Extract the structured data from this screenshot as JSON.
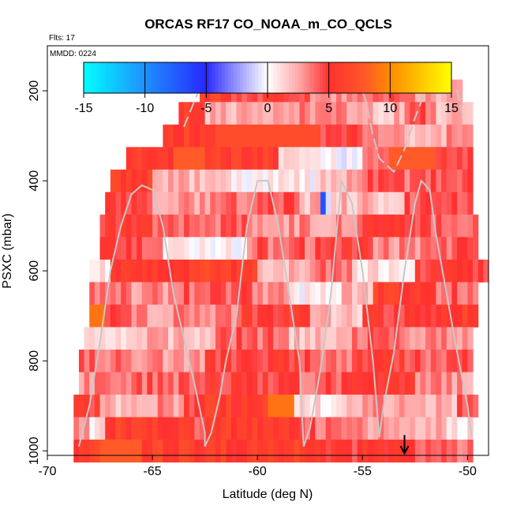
{
  "chart_data": {
    "type": "heatmap",
    "title": "ORCAS RF17 CO_NOAA_m_CO_QCLS",
    "flights_note": "Flts: 17",
    "date_note": "MMDD: 0224",
    "xlabel": "Latitude (deg N)",
    "ylabel": "PSXC (mbar)",
    "xlim": [
      -70,
      -49
    ],
    "ylim": [
      1010,
      100
    ],
    "y_reversed": true,
    "x_ticks": [
      "-70",
      "-65",
      "-60",
      "-55",
      "-50"
    ],
    "x_tick_values": [
      -70,
      -65,
      -60,
      -55,
      -50
    ],
    "y_ticks": [
      "200",
      "400",
      "600",
      "800",
      "1000"
    ],
    "y_tick_values": [
      200,
      400,
      600,
      800,
      1000
    ],
    "colorbar": {
      "range": [
        -15,
        15
      ],
      "ticks": [
        "-15",
        "-10",
        "-5",
        "0",
        "5",
        "10",
        "15"
      ],
      "tick_values": [
        -15,
        -10,
        -5,
        0,
        5,
        10,
        15
      ]
    },
    "cell_height_mbar": 50,
    "cell_width_deg": 0.25,
    "rows": [
      {
        "p": 200,
        "x0": -62.75,
        "x1": -50.25,
        "segs": [
          [
            -62.75,
            -61.5,
            6
          ],
          [
            -61.5,
            -57.5,
            5
          ],
          [
            -57.5,
            -55,
            3
          ],
          [
            -55,
            -53,
            4
          ],
          [
            -53,
            -51.5,
            3
          ],
          [
            -51.5,
            -50.25,
            2
          ]
        ]
      },
      {
        "p": 250,
        "x0": -63.75,
        "x1": -49.75,
        "segs": [
          [
            -63.75,
            -62.5,
            6
          ],
          [
            -62.5,
            -58,
            2
          ],
          [
            -58,
            -55.5,
            3
          ],
          [
            -55.5,
            -53,
            2
          ],
          [
            -53,
            -51.5,
            4
          ],
          [
            -51.5,
            -49.75,
            2
          ]
        ]
      },
      {
        "p": 300,
        "x0": -64.5,
        "x1": -49.75,
        "segs": [
          [
            -64.5,
            -62,
            6
          ],
          [
            -62,
            -57,
            7
          ],
          [
            -57,
            -55,
            5
          ],
          [
            -55,
            -53,
            3
          ],
          [
            -53,
            -51,
            2
          ],
          [
            -51,
            -49.75,
            3
          ]
        ]
      },
      {
        "p": 350,
        "x0": -66.25,
        "x1": -49.75,
        "segs": [
          [
            -66.25,
            -64,
            6
          ],
          [
            -64,
            -62.5,
            8
          ],
          [
            -62.5,
            -59,
            6
          ],
          [
            -59,
            -57,
            2
          ],
          [
            -57,
            -55,
            0
          ],
          [
            -55,
            -53.75,
            3
          ],
          [
            -53.75,
            -51.5,
            8
          ],
          [
            -51.5,
            -49.75,
            5
          ]
        ]
      },
      {
        "p": 400,
        "x0": -67,
        "x1": -49.75,
        "segs": [
          [
            -67,
            -65,
            6
          ],
          [
            -65,
            -61.5,
            2
          ],
          [
            -61.5,
            -57,
            0.5
          ],
          [
            -57,
            -55,
            2
          ],
          [
            -55,
            -53,
            4
          ],
          [
            -53,
            -49.75,
            4
          ]
        ]
      },
      {
        "p": 450,
        "x0": -67.25,
        "x1": -49.75,
        "segs": [
          [
            -67.25,
            -65,
            5
          ],
          [
            -65,
            -62,
            3
          ],
          [
            -62,
            -58,
            4
          ],
          [
            -58,
            -57,
            2
          ],
          [
            -57,
            -56.75,
            -7
          ],
          [
            -56.75,
            -56.5,
            0
          ],
          [
            -56.5,
            -53,
            2
          ],
          [
            -53,
            -49.75,
            4
          ]
        ]
      },
      {
        "p": 500,
        "x0": -67.5,
        "x1": -49.5,
        "segs": [
          [
            -67.5,
            -65,
            5
          ],
          [
            -65,
            -60.5,
            4
          ],
          [
            -60.5,
            -57,
            3
          ],
          [
            -57,
            -55,
            3
          ],
          [
            -55,
            -52,
            5
          ],
          [
            -52,
            -49.5,
            4
          ]
        ]
      },
      {
        "p": 550,
        "x0": -67.5,
        "x1": -49.5,
        "segs": [
          [
            -67.5,
            -65.5,
            5
          ],
          [
            -65.5,
            -64.5,
            4
          ],
          [
            -64.5,
            -60.5,
            0.5
          ],
          [
            -60.5,
            -56.5,
            4
          ],
          [
            -56.5,
            -54.5,
            5
          ],
          [
            -54.5,
            -51.5,
            3
          ],
          [
            -51.5,
            -49.5,
            4
          ]
        ]
      },
      {
        "p": 600,
        "x0": -68,
        "x1": -49,
        "segs": [
          [
            -68,
            -67,
            0.5
          ],
          [
            -67,
            -60,
            6
          ],
          [
            -60,
            -57.5,
            2
          ],
          [
            -57.5,
            -55.5,
            4
          ],
          [
            -55.5,
            -52.5,
            1
          ],
          [
            -52.5,
            -49,
            5
          ]
        ]
      },
      {
        "p": 650,
        "x0": -68,
        "x1": -49.5,
        "segs": [
          [
            -68,
            -66,
            4
          ],
          [
            -66,
            -63.5,
            3
          ],
          [
            -63.5,
            -60,
            4
          ],
          [
            -60,
            -58.5,
            3
          ],
          [
            -58.5,
            -56,
            0.5
          ],
          [
            -56,
            -54.5,
            2
          ],
          [
            -54.5,
            -51.5,
            6
          ],
          [
            -51.5,
            -49.5,
            4
          ]
        ]
      },
      {
        "p": 700,
        "x0": -68,
        "x1": -49.5,
        "segs": [
          [
            -68,
            -67.25,
            9
          ],
          [
            -67.25,
            -66,
            4
          ],
          [
            -66,
            -61,
            3
          ],
          [
            -61,
            -57.5,
            5
          ],
          [
            -57.5,
            -55,
            2
          ],
          [
            -55,
            -51,
            5
          ],
          [
            -51,
            -49.5,
            6
          ]
        ]
      },
      {
        "p": 750,
        "x0": -68.25,
        "x1": -49.75,
        "segs": [
          [
            -68.25,
            -66,
            1
          ],
          [
            -66,
            -62,
            2
          ],
          [
            -62,
            -58.5,
            4
          ],
          [
            -58.5,
            -55.5,
            2
          ],
          [
            -55.5,
            -53,
            4
          ],
          [
            -53,
            -49.75,
            3
          ]
        ]
      },
      {
        "p": 800,
        "x0": -68.5,
        "x1": -49.75,
        "segs": [
          [
            -68.5,
            -66.5,
            4
          ],
          [
            -66.5,
            -62.5,
            3
          ],
          [
            -62.5,
            -58,
            5
          ],
          [
            -58,
            -55.5,
            4
          ],
          [
            -55.5,
            -53,
            5
          ],
          [
            -53,
            -49.75,
            4
          ]
        ]
      },
      {
        "p": 850,
        "x0": -68.5,
        "x1": -49.75,
        "segs": [
          [
            -68.5,
            -66,
            3
          ],
          [
            -66,
            -62.5,
            4
          ],
          [
            -62.5,
            -58,
            5
          ],
          [
            -58,
            -55.5,
            4
          ],
          [
            -55.5,
            -52.5,
            5
          ],
          [
            -52.5,
            -49.75,
            3
          ]
        ]
      },
      {
        "p": 900,
        "x0": -68.75,
        "x1": -49.5,
        "segs": [
          [
            -68.75,
            -67.5,
            5
          ],
          [
            -67.5,
            -65.5,
            2
          ],
          [
            -65.5,
            -63.5,
            3
          ],
          [
            -63.5,
            -62.5,
            5
          ],
          [
            -62.5,
            -59.5,
            6
          ],
          [
            -59.5,
            -58.25,
            9
          ],
          [
            -58.25,
            -56,
            1
          ],
          [
            -56,
            -55,
            2
          ],
          [
            -55,
            -53,
            3
          ],
          [
            -53,
            -50.5,
            2
          ],
          [
            -50.5,
            -49.5,
            4
          ]
        ]
      },
      {
        "p": 950,
        "x0": -68.75,
        "x1": -49.75,
        "segs": [
          [
            -68.75,
            -68,
            3
          ],
          [
            -68,
            -67.25,
            0.5
          ],
          [
            -67.25,
            -63,
            6
          ],
          [
            -63,
            -62.5,
            3
          ],
          [
            -62.5,
            -58,
            6
          ],
          [
            -58,
            -55,
            4
          ],
          [
            -55,
            -53.5,
            3
          ],
          [
            -53.5,
            -51,
            2
          ],
          [
            -51,
            -50,
            0.5
          ],
          [
            -50,
            -49.75,
            2
          ]
        ]
      },
      {
        "p": 1000,
        "x0": -68.75,
        "x1": -49.75,
        "segs": [
          [
            -68.75,
            -67.5,
            6
          ],
          [
            -67.5,
            -65.5,
            8
          ],
          [
            -65.5,
            -62,
            6
          ],
          [
            -62,
            -58,
            6
          ],
          [
            -58,
            -55,
            5
          ],
          [
            -55,
            -52.5,
            5
          ],
          [
            -52.5,
            -49.75,
            4
          ]
        ]
      }
    ],
    "flight_track": [
      [
        -68.5,
        990
      ],
      [
        -68,
        900
      ],
      [
        -67.5,
        760
      ],
      [
        -67,
        600
      ],
      [
        -66.5,
        500
      ],
      [
        -66,
        430
      ],
      [
        -65.5,
        410
      ],
      [
        -65,
        420
      ],
      [
        -64.5,
        500
      ],
      [
        -64,
        650
      ],
      [
        -63.5,
        750
      ],
      [
        -63,
        850
      ],
      [
        -62.5,
        960
      ],
      [
        -62.5,
        990
      ],
      [
        -62.2,
        960
      ],
      [
        -61.8,
        880
      ],
      [
        -61.5,
        800
      ],
      [
        -61,
        700
      ],
      [
        -60.5,
        500
      ],
      [
        -60,
        400
      ],
      [
        -59.5,
        400
      ],
      [
        -59,
        500
      ],
      [
        -58.5,
        650
      ],
      [
        -58,
        800
      ],
      [
        -57.8,
        990
      ],
      [
        -57.5,
        950
      ],
      [
        -57,
        820
      ],
      [
        -56.5,
        650
      ],
      [
        -56.2,
        500
      ],
      [
        -56,
        400
      ],
      [
        -55.5,
        450
      ],
      [
        -55,
        600
      ],
      [
        -54.5,
        800
      ],
      [
        -54.2,
        970
      ],
      [
        -54,
        900
      ],
      [
        -53.5,
        780
      ],
      [
        -53,
        600
      ],
      [
        -52.5,
        450
      ],
      [
        -52.2,
        400
      ],
      [
        -51.8,
        420
      ],
      [
        -51.5,
        520
      ],
      [
        -51,
        650
      ],
      [
        -50.5,
        780
      ],
      [
        -50,
        900
      ],
      [
        -49.8,
        970
      ]
    ],
    "upper_track": [
      [
        -63.5,
        280
      ],
      [
        -62.8,
        200
      ],
      [
        -62.5,
        195
      ],
      [
        -61,
        195
      ],
      [
        -59,
        195
      ],
      [
        -57.5,
        195
      ],
      [
        -56,
        195
      ],
      [
        -55,
        200
      ],
      [
        -54.8,
        230
      ],
      [
        -54.5,
        300
      ],
      [
        -54.2,
        350
      ],
      [
        -53.5,
        380
      ],
      [
        -53,
        330
      ],
      [
        -52.5,
        260
      ],
      [
        -52,
        200
      ],
      [
        -51,
        195
      ],
      [
        -50.5,
        200
      ],
      [
        -50.2,
        260
      ]
    ],
    "marker": {
      "lat": -53,
      "p": 1000,
      "symbol": "↓"
    }
  }
}
